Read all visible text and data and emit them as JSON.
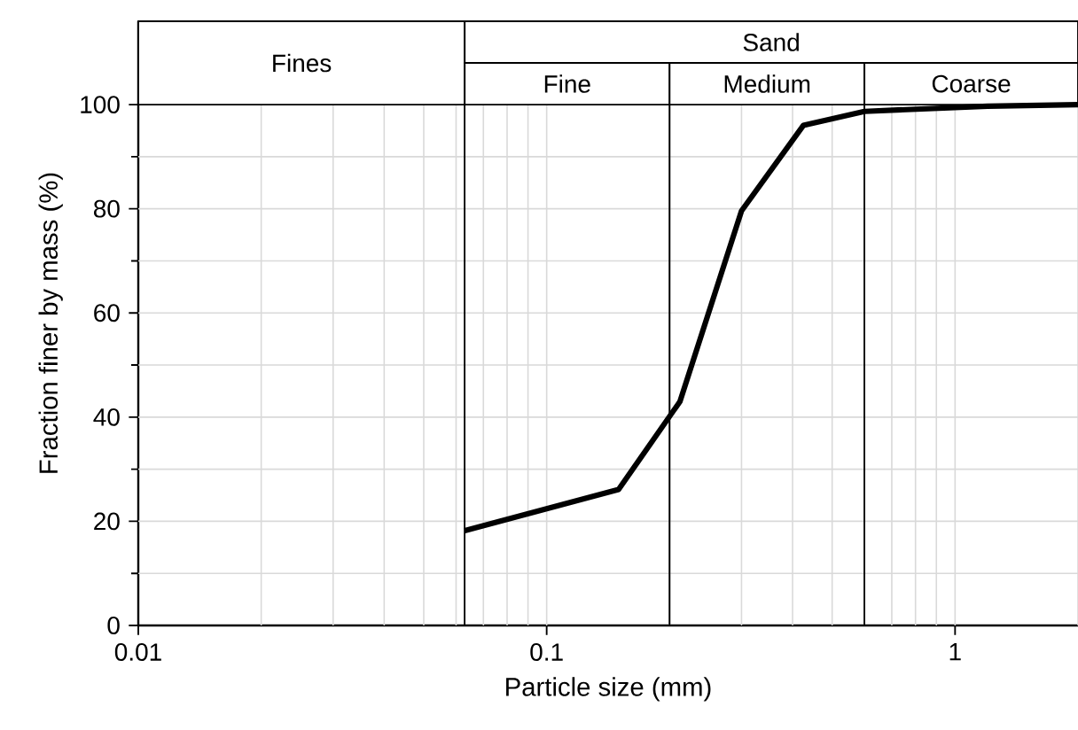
{
  "chart_data": {
    "type": "line",
    "xlabel": "Particle size (mm)",
    "ylabel": "Fraction finer by mass (%)",
    "x": [
      0.063,
      0.15,
      0.212,
      0.3,
      0.425,
      0.6,
      1.2,
      2
    ],
    "series": [
      {
        "color": "#000000",
        "values": [
          18.2,
          26.1,
          43.0,
          79.6,
          96.0,
          98.7,
          99.7,
          100
        ]
      }
    ],
    "log": "x",
    "xlim": [
      0.01,
      2
    ],
    "ylim": [
      0,
      116
    ],
    "xticks": [
      0.01,
      0.1,
      1
    ],
    "yticks": [
      0,
      20,
      40,
      60,
      80,
      100
    ],
    "grid": true,
    "bands": [
      {
        "axis": "x",
        "from": 0.01,
        "to": 0.063,
        "label": "Fines",
        "color": "#ffffff"
      },
      {
        "axis": "x",
        "from": 0.063,
        "to": 2,
        "label": "Sand",
        "color": "#ffffff"
      },
      {
        "axis": "x",
        "from": 0.063,
        "to": 0.2,
        "label": "Fine",
        "color": "#ffffff"
      },
      {
        "axis": "x",
        "from": 0.2,
        "to": 0.6,
        "label": "Medium",
        "color": "#ffffff"
      },
      {
        "axis": "x",
        "from": 0.6,
        "to": 2,
        "label": "Coarse",
        "color": "#ffffff"
      }
    ]
  }
}
